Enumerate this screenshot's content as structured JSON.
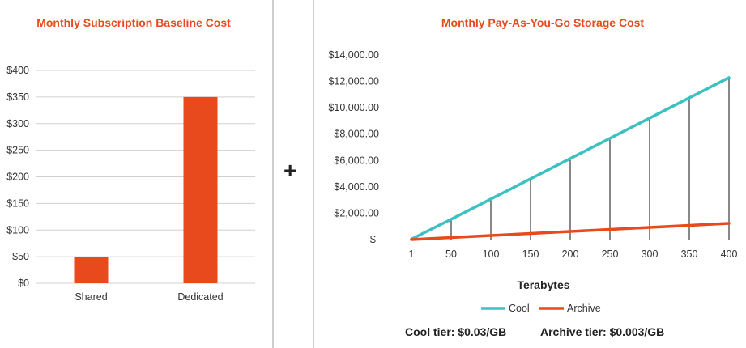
{
  "colors": {
    "accent": "#e8491d",
    "cool": "#3cc0c0",
    "archive": "#e8491d",
    "grid": "#d0d0d0"
  },
  "operator": "+",
  "chart_data": [
    {
      "type": "bar",
      "title": "Monthly Subscription Baseline Cost",
      "categories": [
        "Shared",
        "Dedicated"
      ],
      "values": [
        50,
        350
      ],
      "ylim": [
        0,
        400
      ],
      "yticks": [
        0,
        50,
        100,
        150,
        200,
        250,
        300,
        350,
        400
      ],
      "ytick_labels": [
        "$0",
        "$50",
        "$100",
        "$150",
        "$200",
        "$250",
        "$300",
        "$350",
        "$400"
      ],
      "grid": true,
      "xlabel": "",
      "ylabel": ""
    },
    {
      "type": "line",
      "title": "Monthly Pay-As-You-Go Storage Cost",
      "x": [
        1,
        50,
        100,
        150,
        200,
        250,
        300,
        350,
        400
      ],
      "x_labels": [
        "1",
        "50",
        "100",
        "150",
        "200",
        "250",
        "300",
        "350",
        "400"
      ],
      "series": [
        {
          "name": "Cool",
          "values": [
            31,
            1536,
            3072,
            4608,
            6144,
            7680,
            9216,
            10752,
            12288
          ]
        },
        {
          "name": "Archive",
          "values": [
            3,
            154,
            307,
            461,
            614,
            768,
            922,
            1075,
            1229
          ]
        }
      ],
      "ylim": [
        0,
        14000
      ],
      "yticks": [
        0,
        2000,
        4000,
        6000,
        8000,
        10000,
        12000,
        14000
      ],
      "ytick_labels": [
        "$-",
        "$2,000.00",
        "$4,000.00",
        "$6,000.00",
        "$8,000.00",
        "$10,000.00",
        "$12,000.00",
        "$14,000.00"
      ],
      "xlabel": "Terabytes",
      "ylabel": "",
      "drop_lines": true,
      "legend": "bottom"
    }
  ],
  "notes": {
    "cool": "Cool tier: $0.03/GB",
    "archive": "Archive tier: $0.003/GB"
  }
}
